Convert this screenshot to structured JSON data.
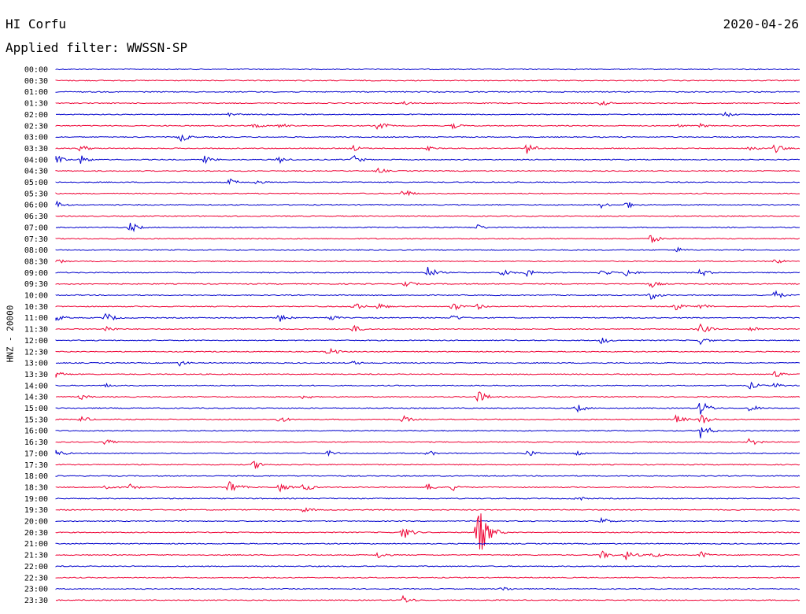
{
  "header": {
    "station": "HI Corfu",
    "date": "2020-04-26",
    "filter": "Applied filter: WWSSN-SP"
  },
  "chart_data": {
    "type": "line",
    "title": "HI Corfu",
    "subtitle": "Applied filter: WWSSN-SP",
    "date": "2020-04-26",
    "ylabel": "HNZ - 20000",
    "xlabel": "",
    "grid": false,
    "legend": "none",
    "colors": [
      "#0000cc",
      "#ee0033"
    ],
    "rows": [
      "00:00",
      "00:30",
      "01:00",
      "01:30",
      "02:00",
      "02:30",
      "03:00",
      "03:30",
      "04:00",
      "04:30",
      "05:00",
      "05:30",
      "06:00",
      "06:30",
      "07:00",
      "07:30",
      "08:00",
      "08:30",
      "09:00",
      "09:30",
      "10:00",
      "10:30",
      "11:00",
      "11:30",
      "12:00",
      "12:30",
      "13:00",
      "13:30",
      "14:00",
      "14:30",
      "15:00",
      "15:30",
      "16:00",
      "16:30",
      "17:00",
      "17:30",
      "18:00",
      "18:30",
      "19:00",
      "19:30",
      "20:00",
      "20:30",
      "21:00",
      "21:30",
      "22:00",
      "22:30",
      "23:00",
      "23:30"
    ],
    "events": [
      {
        "row": "01:30",
        "minute": 14,
        "amp": 3
      },
      {
        "row": "01:30",
        "minute": 22,
        "amp": 4
      },
      {
        "row": "02:00",
        "minute": 7,
        "amp": 4
      },
      {
        "row": "02:00",
        "minute": 27,
        "amp": 4
      },
      {
        "row": "02:30",
        "minute": 8,
        "amp": 4
      },
      {
        "row": "02:30",
        "minute": 9,
        "amp": 4
      },
      {
        "row": "02:30",
        "minute": 13,
        "amp": 6
      },
      {
        "row": "02:30",
        "minute": 16,
        "amp": 4
      },
      {
        "row": "02:30",
        "minute": 25,
        "amp": 3
      },
      {
        "row": "02:30",
        "minute": 26,
        "amp": 3
      },
      {
        "row": "03:00",
        "minute": 5,
        "amp": 6
      },
      {
        "row": "03:00",
        "minute": 5,
        "amp": 7
      },
      {
        "row": "03:30",
        "minute": 1,
        "amp": 5
      },
      {
        "row": "03:30",
        "minute": 12,
        "amp": 4
      },
      {
        "row": "03:30",
        "minute": 15,
        "amp": 3
      },
      {
        "row": "03:30",
        "minute": 19,
        "amp": 7
      },
      {
        "row": "03:30",
        "minute": 28,
        "amp": 5
      },
      {
        "row": "03:30",
        "minute": 29,
        "amp": 6
      },
      {
        "row": "04:00",
        "minute": 0,
        "amp": 6
      },
      {
        "row": "04:00",
        "minute": 1,
        "amp": 6
      },
      {
        "row": "04:00",
        "minute": 6,
        "amp": 5
      },
      {
        "row": "04:00",
        "minute": 9,
        "amp": 5
      },
      {
        "row": "04:00",
        "minute": 12,
        "amp": 6
      },
      {
        "row": "04:00",
        "minute": 12,
        "amp": 5
      },
      {
        "row": "04:30",
        "minute": 13,
        "amp": 4
      },
      {
        "row": "05:00",
        "minute": 7,
        "amp": 5
      },
      {
        "row": "05:00",
        "minute": 8,
        "amp": 4
      },
      {
        "row": "05:30",
        "minute": 14,
        "amp": 6
      },
      {
        "row": "06:00",
        "minute": 0,
        "amp": 5
      },
      {
        "row": "06:00",
        "minute": 22,
        "amp": 4
      },
      {
        "row": "06:00",
        "minute": 23,
        "amp": 5
      },
      {
        "row": "07:00",
        "minute": 3,
        "amp": 7
      },
      {
        "row": "07:00",
        "minute": 17,
        "amp": 4
      },
      {
        "row": "07:30",
        "minute": 24,
        "amp": 6
      },
      {
        "row": "08:00",
        "minute": 25,
        "amp": 4
      },
      {
        "row": "08:30",
        "minute": 0,
        "amp": 4
      },
      {
        "row": "08:30",
        "minute": 29,
        "amp": 4
      },
      {
        "row": "09:00",
        "minute": 15,
        "amp": 8
      },
      {
        "row": "09:00",
        "minute": 18,
        "amp": 6
      },
      {
        "row": "09:00",
        "minute": 19,
        "amp": 6
      },
      {
        "row": "09:00",
        "minute": 22,
        "amp": 5
      },
      {
        "row": "09:00",
        "minute": 23,
        "amp": 6
      },
      {
        "row": "09:00",
        "minute": 26,
        "amp": 6
      },
      {
        "row": "09:30",
        "minute": 14,
        "amp": 6
      },
      {
        "row": "09:30",
        "minute": 24,
        "amp": 5
      },
      {
        "row": "10:00",
        "minute": 24,
        "amp": 6
      },
      {
        "row": "10:00",
        "minute": 29,
        "amp": 6
      },
      {
        "row": "10:30",
        "minute": 12,
        "amp": 6
      },
      {
        "row": "10:30",
        "minute": 13,
        "amp": 5
      },
      {
        "row": "10:30",
        "minute": 16,
        "amp": 6
      },
      {
        "row": "10:30",
        "minute": 17,
        "amp": 4
      },
      {
        "row": "10:30",
        "minute": 25,
        "amp": 5
      },
      {
        "row": "10:30",
        "minute": 26,
        "amp": 5
      },
      {
        "row": "11:00",
        "minute": 0,
        "amp": 5
      },
      {
        "row": "11:00",
        "minute": 2,
        "amp": 7
      },
      {
        "row": "11:00",
        "minute": 9,
        "amp": 6
      },
      {
        "row": "11:00",
        "minute": 11,
        "amp": 5
      },
      {
        "row": "11:00",
        "minute": 16,
        "amp": 5
      },
      {
        "row": "11:30",
        "minute": 2,
        "amp": 5
      },
      {
        "row": "11:30",
        "minute": 12,
        "amp": 5
      },
      {
        "row": "11:30",
        "minute": 26,
        "amp": 7
      },
      {
        "row": "11:30",
        "minute": 28,
        "amp": 5
      },
      {
        "row": "12:00",
        "minute": 22,
        "amp": 5
      },
      {
        "row": "12:00",
        "minute": 26,
        "amp": 5
      },
      {
        "row": "12:30",
        "minute": 11,
        "amp": 6
      },
      {
        "row": "13:00",
        "minute": 5,
        "amp": 4
      },
      {
        "row": "13:00",
        "minute": 12,
        "amp": 3
      },
      {
        "row": "13:30",
        "minute": 0,
        "amp": 5
      },
      {
        "row": "13:30",
        "minute": 29,
        "amp": 5
      },
      {
        "row": "14:00",
        "minute": 2,
        "amp": 3
      },
      {
        "row": "14:00",
        "minute": 28,
        "amp": 5
      },
      {
        "row": "14:00",
        "minute": 29,
        "amp": 4
      },
      {
        "row": "14:30",
        "minute": 1,
        "amp": 4
      },
      {
        "row": "14:30",
        "minute": 10,
        "amp": 4
      },
      {
        "row": "14:30",
        "minute": 17,
        "amp": 9
      },
      {
        "row": "15:00",
        "minute": 21,
        "amp": 6
      },
      {
        "row": "15:00",
        "minute": 26,
        "amp": 10
      },
      {
        "row": "15:00",
        "minute": 28,
        "amp": 5
      },
      {
        "row": "15:30",
        "minute": 1,
        "amp": 5
      },
      {
        "row": "15:30",
        "minute": 9,
        "amp": 5
      },
      {
        "row": "15:30",
        "minute": 14,
        "amp": 5
      },
      {
        "row": "15:30",
        "minute": 25,
        "amp": 6
      },
      {
        "row": "15:30",
        "minute": 26,
        "amp": 8
      },
      {
        "row": "16:00",
        "minute": 26,
        "amp": 10
      },
      {
        "row": "16:30",
        "minute": 2,
        "amp": 4
      },
      {
        "row": "16:30",
        "minute": 28,
        "amp": 6
      },
      {
        "row": "17:00",
        "minute": 0,
        "amp": 5
      },
      {
        "row": "17:00",
        "minute": 11,
        "amp": 4
      },
      {
        "row": "17:00",
        "minute": 15,
        "amp": 4
      },
      {
        "row": "17:00",
        "minute": 19,
        "amp": 5
      },
      {
        "row": "17:00",
        "minute": 21,
        "amp": 4
      },
      {
        "row": "17:30",
        "minute": 8,
        "amp": 6
      },
      {
        "row": "18:30",
        "minute": 2,
        "amp": 5
      },
      {
        "row": "18:30",
        "minute": 3,
        "amp": 4
      },
      {
        "row": "18:30",
        "minute": 7,
        "amp": 5
      },
      {
        "row": "18:30",
        "minute": 7,
        "amp": 10
      },
      {
        "row": "18:30",
        "minute": 9,
        "amp": 6
      },
      {
        "row": "18:30",
        "minute": 10,
        "amp": 6
      },
      {
        "row": "18:30",
        "minute": 15,
        "amp": 5
      },
      {
        "row": "18:30",
        "minute": 16,
        "amp": 5
      },
      {
        "row": "19:00",
        "minute": 21,
        "amp": 4
      },
      {
        "row": "19:30",
        "minute": 10,
        "amp": 4
      },
      {
        "row": "20:00",
        "minute": 22,
        "amp": 5
      },
      {
        "row": "20:30",
        "minute": 14,
        "amp": 9
      },
      {
        "row": "20:30",
        "minute": 17,
        "amp": 40
      },
      {
        "row": "21:30",
        "minute": 13,
        "amp": 5
      },
      {
        "row": "21:30",
        "minute": 22,
        "amp": 6
      },
      {
        "row": "21:30",
        "minute": 23,
        "amp": 7
      },
      {
        "row": "21:30",
        "minute": 24,
        "amp": 5
      },
      {
        "row": "21:30",
        "minute": 26,
        "amp": 5
      },
      {
        "row": "23:00",
        "minute": 18,
        "amp": 4
      },
      {
        "row": "23:30",
        "minute": 14,
        "amp": 6
      }
    ]
  }
}
